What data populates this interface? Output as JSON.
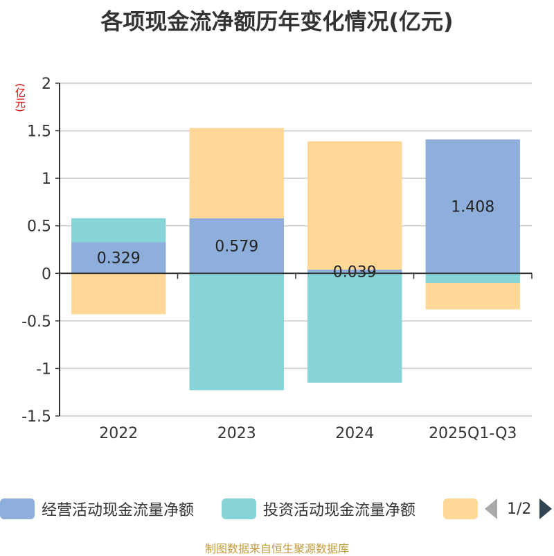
{
  "title": "各项现金流净额历年变化情况(亿元)",
  "unit_label": "(亿元)",
  "footer": "制图数据来自恒生聚源数据库",
  "pager": {
    "text": "1/2"
  },
  "legend": [
    {
      "name": "经营活动现金流量净额",
      "color": "#8eaedb"
    },
    {
      "name": "投资活动现金流量净额",
      "color": "#86d4d8"
    },
    {
      "name": "",
      "color": "#ffd797"
    }
  ],
  "chart_data": {
    "type": "bar",
    "stacked": true,
    "title": "各项现金流净额历年变化情况(亿元)",
    "ylabel": "(亿元)",
    "categories": [
      "2022",
      "2023",
      "2024",
      "2025Q1-Q3"
    ],
    "ylim": [
      -1.5,
      2
    ],
    "yticks": [
      -1.5,
      -1,
      -0.5,
      0,
      0.5,
      1,
      1.5,
      2
    ],
    "ytick_labels": [
      "-1.5",
      "-1",
      "-0.5",
      "0",
      "0.5",
      "1",
      "1.5",
      "2"
    ],
    "series": [
      {
        "name": "经营活动现金流量净额",
        "color": "#8eaedb",
        "values": [
          0.329,
          0.579,
          0.039,
          1.408
        ],
        "labels": [
          "0.329",
          "0.579",
          "0.039",
          "1.408"
        ]
      },
      {
        "name": "投资活动现金流量净额",
        "color": "#86d4d8",
        "values": [
          0.25,
          -1.23,
          -1.15,
          -0.1
        ]
      },
      {
        "name": "",
        "color": "#ffd797",
        "values": [
          -0.43,
          0.95,
          1.35,
          -0.28
        ]
      }
    ]
  }
}
